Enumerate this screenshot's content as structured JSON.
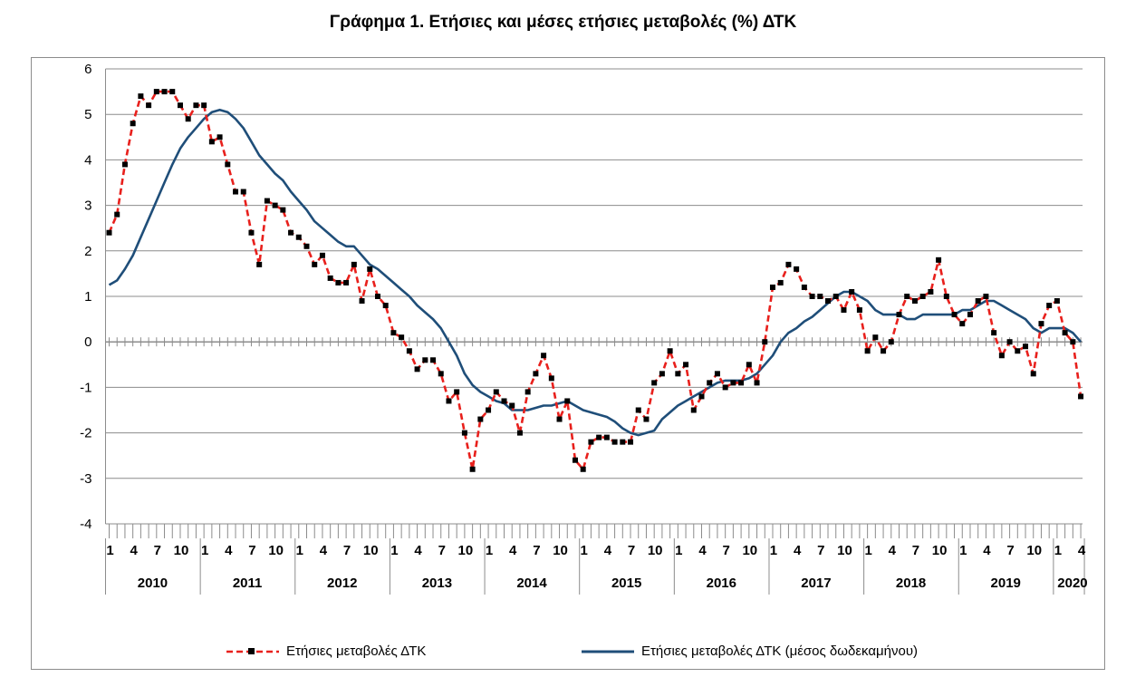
{
  "chart_data": {
    "type": "line",
    "title": "Γράφημα 1. Ετήσιες και μέσες ετήσιες μεταβολές (%) ΔΤΚ",
    "ylim": [
      -4,
      6
    ],
    "yticks": [
      "6",
      "5",
      "4",
      "3",
      "2",
      "1",
      "0",
      "-1",
      "-2",
      "-3",
      "-4"
    ],
    "month_labels": [
      "1",
      "4",
      "7",
      "10"
    ],
    "last_month_labels": [
      "1",
      "4"
    ],
    "years": [
      "2010",
      "2011",
      "2012",
      "2013",
      "2014",
      "2015",
      "2016",
      "2017",
      "2018",
      "2019",
      "2020"
    ],
    "grid": true,
    "legend_position": "bottom",
    "colors": {
      "annual": "#e8201c",
      "average": "#1f4e79",
      "markers": "#000000"
    },
    "series": [
      {
        "name": "Ετήσιες μεταβολές ΔΤΚ",
        "style": "dashed-markers",
        "values": [
          2.4,
          2.8,
          3.9,
          4.8,
          5.4,
          5.2,
          5.5,
          5.5,
          5.5,
          5.2,
          4.9,
          5.2,
          5.2,
          4.4,
          4.5,
          3.9,
          3.3,
          3.3,
          2.4,
          1.7,
          3.1,
          3.0,
          2.9,
          2.4,
          2.3,
          2.1,
          1.7,
          1.9,
          1.4,
          1.3,
          1.3,
          1.7,
          0.9,
          1.6,
          1.0,
          0.8,
          0.2,
          0.1,
          -0.2,
          -0.6,
          -0.4,
          -0.4,
          -0.7,
          -1.3,
          -1.1,
          -2.0,
          -2.8,
          -1.7,
          -1.5,
          -1.1,
          -1.3,
          -1.4,
          -2.0,
          -1.1,
          -0.7,
          -0.3,
          -0.8,
          -1.7,
          -1.3,
          -2.6,
          -2.8,
          -2.2,
          -2.1,
          -2.1,
          -2.2,
          -2.2,
          -2.2,
          -1.5,
          -1.7,
          -0.9,
          -0.7,
          -0.2,
          -0.7,
          -0.5,
          -1.5,
          -1.2,
          -0.9,
          -0.7,
          -1.0,
          -0.9,
          -0.9,
          -0.5,
          -0.9,
          0.0,
          1.2,
          1.3,
          1.7,
          1.6,
          1.2,
          1.0,
          1.0,
          0.9,
          1.0,
          0.7,
          1.1,
          0.7,
          -0.2,
          0.1,
          -0.2,
          0.0,
          0.6,
          1.0,
          0.9,
          1.0,
          1.1,
          1.8,
          1.0,
          0.6,
          0.4,
          0.6,
          0.9,
          1.0,
          0.2,
          -0.3,
          0.0,
          -0.2,
          -0.1,
          -0.7,
          0.4,
          0.8,
          0.9,
          0.2,
          0.0,
          -1.2
        ]
      },
      {
        "name": "Ετήσιες μεταβολές ΔΤΚ (μέσος δωδεκαμήνου)",
        "style": "solid",
        "values": [
          1.25,
          1.35,
          1.6,
          1.9,
          2.3,
          2.7,
          3.1,
          3.5,
          3.9,
          4.25,
          4.5,
          4.7,
          4.9,
          5.05,
          5.1,
          5.05,
          4.9,
          4.7,
          4.4,
          4.1,
          3.9,
          3.7,
          3.55,
          3.3,
          3.1,
          2.9,
          2.65,
          2.5,
          2.35,
          2.2,
          2.1,
          2.1,
          1.9,
          1.7,
          1.6,
          1.45,
          1.3,
          1.15,
          1.0,
          0.8,
          0.65,
          0.5,
          0.3,
          0.0,
          -0.3,
          -0.7,
          -0.95,
          -1.1,
          -1.2,
          -1.3,
          -1.35,
          -1.5,
          -1.5,
          -1.5,
          -1.45,
          -1.4,
          -1.4,
          -1.35,
          -1.3,
          -1.4,
          -1.5,
          -1.55,
          -1.6,
          -1.65,
          -1.75,
          -1.9,
          -2.0,
          -2.05,
          -2.0,
          -1.95,
          -1.7,
          -1.55,
          -1.4,
          -1.3,
          -1.2,
          -1.1,
          -1.0,
          -0.9,
          -0.85,
          -0.85,
          -0.85,
          -0.8,
          -0.7,
          -0.5,
          -0.3,
          0.0,
          0.2,
          0.3,
          0.45,
          0.55,
          0.7,
          0.85,
          1.0,
          1.1,
          1.1,
          1.0,
          0.9,
          0.7,
          0.6,
          0.6,
          0.6,
          0.5,
          0.5,
          0.6,
          0.6,
          0.6,
          0.6,
          0.6,
          0.7,
          0.7,
          0.8,
          0.9,
          0.9,
          0.8,
          0.7,
          0.6,
          0.5,
          0.3,
          0.2,
          0.3,
          0.3,
          0.3,
          0.2,
          0.0
        ]
      }
    ]
  }
}
